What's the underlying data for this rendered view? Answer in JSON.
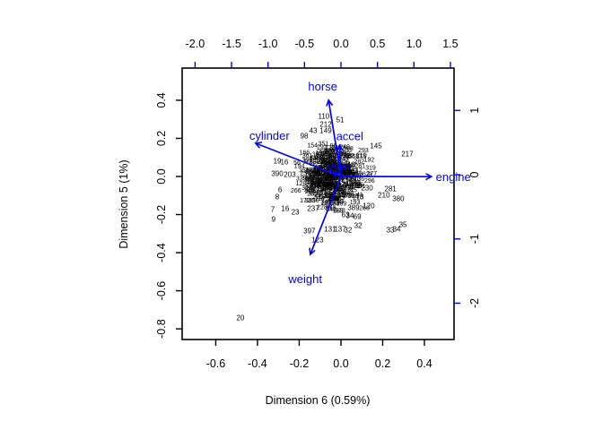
{
  "figure": {
    "background": "#ffffff"
  },
  "chart_data": {
    "type": "scatter",
    "subtype": "biplot-with-variable-arrows",
    "title": "",
    "xlabel": "Dimension 6 (0.59%)",
    "ylabel": "Dimension 5 (1%)",
    "colors": {
      "primary_axis": "#000000",
      "secondary_axis": "#0000ff",
      "arrows": "#0000ff",
      "point_labels": "#000000",
      "background": "#ffffff"
    },
    "axes": {
      "bottom": {
        "side": "bottom",
        "color": "#000000",
        "range": [
          -0.761,
          0.542
        ],
        "ticks": [
          {
            "v": -0.6,
            "t": "-0.6"
          },
          {
            "v": -0.4,
            "t": "-0.4"
          },
          {
            "v": -0.2,
            "t": "-0.2"
          },
          {
            "v": 0.0,
            "t": "0.0"
          },
          {
            "v": 0.2,
            "t": "0.2"
          },
          {
            "v": 0.4,
            "t": "0.4"
          }
        ]
      },
      "left": {
        "side": "left",
        "color": "#000000",
        "range": [
          -0.856,
          0.569
        ],
        "ticks": [
          {
            "v": 0.4,
            "t": "0.4"
          },
          {
            "v": 0.2,
            "t": "0.2"
          },
          {
            "v": 0.0,
            "t": "0.0"
          },
          {
            "v": -0.2,
            "t": "-0.2"
          },
          {
            "v": -0.4,
            "t": "-0.4"
          },
          {
            "v": -0.6,
            "t": "-0.6"
          },
          {
            "v": -0.8,
            "t": "-0.8"
          }
        ]
      },
      "top": {
        "side": "top",
        "color": "#0000ff",
        "range": [
          -2.177,
          1.55
        ],
        "ticks": [
          {
            "v": -2.0,
            "t": "-2.0"
          },
          {
            "v": -1.5,
            "t": "-1.5"
          },
          {
            "v": -1.0,
            "t": "-1.0"
          },
          {
            "v": -0.5,
            "t": "-0.5"
          },
          {
            "v": 0.0,
            "t": "0.0"
          },
          {
            "v": 0.5,
            "t": "0.5"
          },
          {
            "v": 1.0,
            "t": "1.0"
          },
          {
            "v": 1.5,
            "t": "1.5"
          }
        ]
      },
      "right": {
        "side": "right",
        "color": "#0000ff",
        "range": [
          -2.566,
          1.66
        ],
        "ticks": [
          {
            "v": 1,
            "t": "1"
          },
          {
            "v": 0,
            "t": "0"
          },
          {
            "v": -1,
            "t": "-1"
          },
          {
            "v": -2,
            "t": "-2"
          }
        ]
      }
    },
    "arrows": [
      {
        "name": "horse",
        "x": -0.17,
        "y": 1.16,
        "label_x": -0.25,
        "label_y": 1.37
      },
      {
        "name": "accel",
        "x": -0.02,
        "y": 0.46,
        "label_x": 0.12,
        "label_y": 0.59
      },
      {
        "name": "year",
        "x": -0.12,
        "y": 0.04,
        "label_x": -0.025,
        "label_y": 0.126
      },
      {
        "name": "cylinder",
        "x": -1.17,
        "y": 0.49,
        "label_x": -0.98,
        "label_y": 0.6
      },
      {
        "name": "engine",
        "x": 1.24,
        "y": -0.03,
        "label_x": 1.54,
        "label_y": -0.04
      },
      {
        "name": "weight",
        "x": -0.42,
        "y": -1.24,
        "label_x": -0.49,
        "label_y": -1.63
      }
    ],
    "points": [
      [
        "20",
        -0.482,
        -0.744
      ],
      [
        "110",
        -0.082,
        0.315
      ],
      [
        "212",
        -0.073,
        0.273
      ],
      [
        "51",
        -0.004,
        0.296
      ],
      [
        "43",
        -0.133,
        0.24
      ],
      [
        "149",
        -0.073,
        0.24
      ],
      [
        "98",
        -0.176,
        0.212
      ],
      [
        "145",
        0.168,
        0.16
      ],
      [
        "217",
        0.318,
        0.118
      ],
      [
        "19",
        -0.305,
        0.08
      ],
      [
        "16",
        -0.271,
        0.075
      ],
      [
        "390",
        -0.305,
        0.014
      ],
      [
        "203",
        -0.245,
        0.009
      ],
      [
        "6",
        -0.292,
        -0.071
      ],
      [
        "8",
        -0.305,
        -0.108
      ],
      [
        "7",
        -0.327,
        -0.174
      ],
      [
        "16",
        -0.267,
        -0.169
      ],
      [
        "23",
        -0.219,
        -0.188
      ],
      [
        "9",
        -0.323,
        -0.226
      ],
      [
        "230",
        0.125,
        -0.061
      ],
      [
        "281",
        0.237,
        -0.066
      ],
      [
        "210",
        0.206,
        -0.099
      ],
      [
        "73",
        0.09,
        -0.108
      ],
      [
        "380",
        0.275,
        -0.118
      ],
      [
        "120",
        0.133,
        -0.155
      ],
      [
        "389",
        0.06,
        -0.165
      ],
      [
        "237",
        -0.133,
        -0.169
      ],
      [
        "63",
        0.022,
        -0.202
      ],
      [
        "34",
        0.043,
        -0.207
      ],
      [
        "69",
        0.078,
        -0.212
      ],
      [
        "397",
        -0.151,
        -0.287
      ],
      [
        "131",
        -0.052,
        -0.278
      ],
      [
        "137",
        -0.004,
        -0.278
      ],
      [
        "32",
        0.034,
        -0.282
      ],
      [
        "32",
        0.082,
        -0.259
      ],
      [
        "123",
        -0.112,
        -0.334
      ],
      [
        "35",
        0.297,
        -0.254
      ],
      [
        "33",
        0.237,
        -0.282
      ],
      [
        "34",
        0.267,
        -0.278
      ]
    ],
    "dense_cluster": {
      "count": 350,
      "cx": -0.034,
      "cy": 0.0,
      "sx": 0.08,
      "sy": 0.078,
      "clip_sigma": 2.3,
      "seed": 42,
      "label_min": 1,
      "label_max": 398
    }
  }
}
